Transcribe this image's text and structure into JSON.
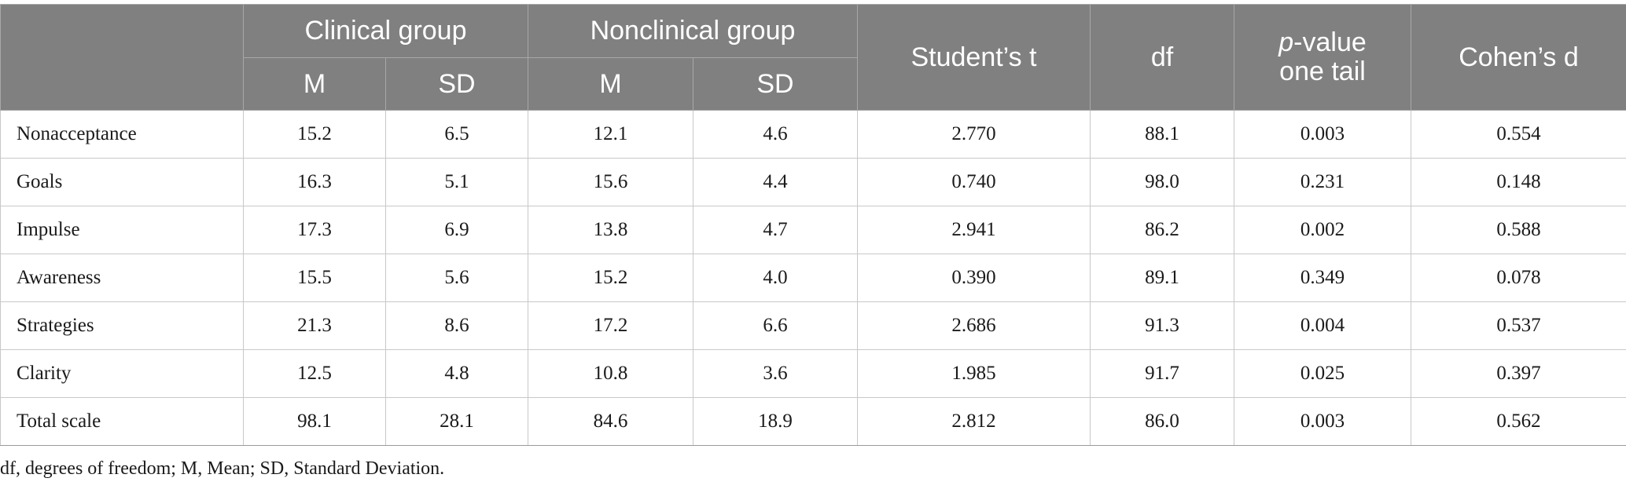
{
  "table": {
    "header": {
      "clinical_group": "Clinical group",
      "nonclinical_group": "Nonclinical group",
      "m": "M",
      "sd": "SD",
      "students_t": "Student’s t",
      "df": "df",
      "p_value_italic": "p",
      "p_value_rest": "-value",
      "p_value_line2": "one tail",
      "cohens_d": "Cohen’s d"
    },
    "rows": [
      {
        "label": "Nonacceptance",
        "clin_m": "15.2",
        "clin_sd": "6.5",
        "non_m": "12.1",
        "non_sd": "4.6",
        "t": "2.770",
        "df": "88.1",
        "p": "0.003",
        "d": "0.554"
      },
      {
        "label": "Goals",
        "clin_m": "16.3",
        "clin_sd": "5.1",
        "non_m": "15.6",
        "non_sd": "4.4",
        "t": "0.740",
        "df": "98.0",
        "p": "0.231",
        "d": "0.148"
      },
      {
        "label": "Impulse",
        "clin_m": "17.3",
        "clin_sd": "6.9",
        "non_m": "13.8",
        "non_sd": "4.7",
        "t": "2.941",
        "df": "86.2",
        "p": "0.002",
        "d": "0.588"
      },
      {
        "label": "Awareness",
        "clin_m": "15.5",
        "clin_sd": "5.6",
        "non_m": "15.2",
        "non_sd": "4.0",
        "t": "0.390",
        "df": "89.1",
        "p": "0.349",
        "d": "0.078"
      },
      {
        "label": "Strategies",
        "clin_m": "21.3",
        "clin_sd": "8.6",
        "non_m": "17.2",
        "non_sd": "6.6",
        "t": "2.686",
        "df": "91.3",
        "p": "0.004",
        "d": "0.537"
      },
      {
        "label": "Clarity",
        "clin_m": "12.5",
        "clin_sd": "4.8",
        "non_m": "10.8",
        "non_sd": "3.6",
        "t": "1.985",
        "df": "91.7",
        "p": "0.025",
        "d": "0.397"
      },
      {
        "label": "Total scale",
        "clin_m": "98.1",
        "clin_sd": "28.1",
        "non_m": "84.6",
        "non_sd": "18.9",
        "t": "2.812",
        "df": "86.0",
        "p": "0.003",
        "d": "0.562"
      }
    ]
  },
  "footnote": "df, degrees of freedom; M, Mean; SD, Standard Deviation."
}
